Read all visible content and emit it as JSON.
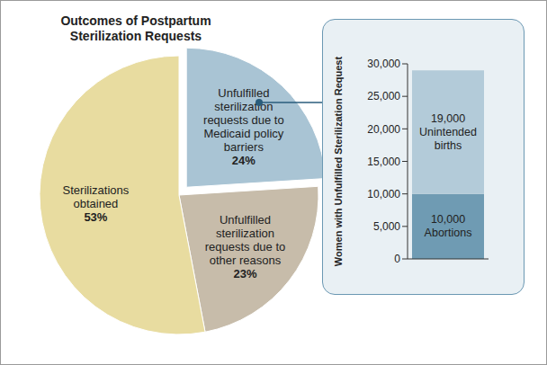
{
  "chart_data": [
    {
      "type": "pie",
      "title": "Outcomes of Postpartum Sterilization Requests",
      "categories": [
        "Unfulfilled sterilization requests due to Medicaid policy barriers",
        "Unfulfilled sterilization requests due to other reasons",
        "Sterilizations obtained"
      ],
      "values": [
        24,
        23,
        53
      ],
      "value_labels": [
        "24%",
        "23%",
        "53%"
      ],
      "colors": [
        "#a9c4d4",
        "#c7bcaa",
        "#e8dca0"
      ],
      "data_labels": true
    },
    {
      "type": "bar",
      "stacked": true,
      "categories": [
        null
      ],
      "series": [
        {
          "name": "Abortions",
          "color": "#6f9bb3",
          "values": [
            10000
          ],
          "value_labels": [
            "10,000"
          ]
        },
        {
          "name": "Unintended births",
          "color": "#b3cbd9",
          "values": [
            19000
          ],
          "value_labels": [
            "19,000"
          ]
        }
      ],
      "ylabel": "Women with Unfulfilled Sterilization Request",
      "ylim": [
        0,
        30000
      ],
      "yticks": [
        0,
        {
          "value": 5000,
          "label": "5,000"
        },
        {
          "value": 10000,
          "label": "10,000"
        },
        {
          "value": 15000,
          "label": "15,000"
        },
        {
          "value": 20000,
          "label": "20,000"
        },
        {
          "value": 25000,
          "label": "25,000"
        },
        {
          "value": 30000,
          "label": "30,000"
        }
      ],
      "data_labels": true,
      "tick_labels": "y"
    }
  ]
}
